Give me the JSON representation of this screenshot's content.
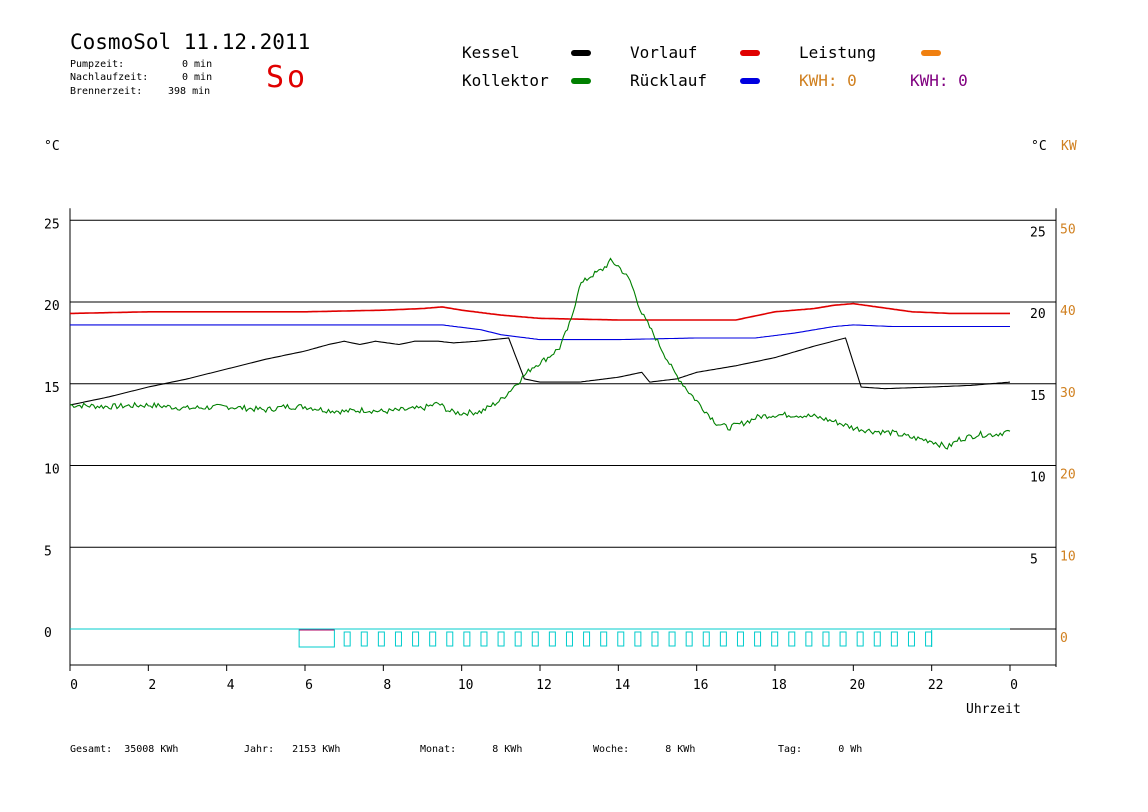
{
  "header": {
    "title": "CosmoSol 11.12.2011",
    "day": "So",
    "info": [
      {
        "label": "Pumpzeit:",
        "value": "0 min"
      },
      {
        "label": "Nachlaufzeit:",
        "value": "0 min"
      },
      {
        "label": "Brennerzeit:",
        "value": "398 min"
      }
    ]
  },
  "legend": {
    "kessel": {
      "label": "Kessel",
      "color": "#000000"
    },
    "kollektor": {
      "label": "Kollektor",
      "color": "#008000"
    },
    "vorlauf": {
      "label": "Vorlauf",
      "color": "#e00000"
    },
    "ruecklauf": {
      "label": "Rücklauf",
      "color": "#0000e0"
    },
    "leistung": {
      "label": "Leistung",
      "color": "#f08010"
    },
    "kwh1": "KWH: 0",
    "kwh2": "KWH: 0",
    "kwh1_color": "#d08020",
    "kwh2_color": "#800080"
  },
  "units": {
    "left": "°C",
    "right": "°C",
    "right2": "KW"
  },
  "footer": [
    {
      "label": "Gesamt:",
      "value": "35008 KWh"
    },
    {
      "label": "Jahr:",
      "value": "2153 KWh"
    },
    {
      "label": "Monat:",
      "value": "8 KWh"
    },
    {
      "label": "Woche:",
      "value": "8 KWh"
    },
    {
      "label": "Tag:",
      "value": "0 Wh"
    }
  ],
  "chart_data": {
    "type": "line",
    "xlabel": "Uhrzeit",
    "xlim": [
      0,
      24
    ],
    "x_ticks": [
      "0",
      "2",
      "4",
      "6",
      "8",
      "10",
      "12",
      "14",
      "16",
      "18",
      "20",
      "22",
      "0"
    ],
    "ylim": [
      0,
      25
    ],
    "y_ticks_left": [
      0,
      5,
      10,
      15,
      20,
      25
    ],
    "y_ticks_right_temp": [
      5,
      10,
      15,
      20,
      25
    ],
    "y_ticks_right_kw": [
      0,
      10,
      20,
      30,
      40,
      50
    ],
    "grid": true,
    "series": [
      {
        "name": "Kessel",
        "color": "#000000",
        "points": [
          [
            0,
            13.7
          ],
          [
            1,
            14.2
          ],
          [
            2,
            14.8
          ],
          [
            3,
            15.3
          ],
          [
            4,
            15.9
          ],
          [
            5,
            16.5
          ],
          [
            6,
            17
          ],
          [
            6.6,
            17.4
          ],
          [
            7,
            17.6
          ],
          [
            7.4,
            17.4
          ],
          [
            7.8,
            17.6
          ],
          [
            8.4,
            17.4
          ],
          [
            8.8,
            17.6
          ],
          [
            9.4,
            17.6
          ],
          [
            9.8,
            17.5
          ],
          [
            10.4,
            17.6
          ],
          [
            11.2,
            17.8
          ],
          [
            11.6,
            15.3
          ],
          [
            12,
            15.1
          ],
          [
            13,
            15.1
          ],
          [
            14,
            15.4
          ],
          [
            14.6,
            15.7
          ],
          [
            14.8,
            15.1
          ],
          [
            15.5,
            15.3
          ],
          [
            16,
            15.7
          ],
          [
            17,
            16.1
          ],
          [
            18,
            16.6
          ],
          [
            19,
            17.3
          ],
          [
            19.8,
            17.8
          ],
          [
            20.2,
            14.8
          ],
          [
            20.8,
            14.7
          ],
          [
            22,
            14.8
          ],
          [
            23,
            14.9
          ],
          [
            24,
            15.1
          ]
        ]
      },
      {
        "name": "Vorlauf",
        "color": "#e00000",
        "points": [
          [
            0,
            19.3
          ],
          [
            2,
            19.4
          ],
          [
            4,
            19.4
          ],
          [
            6,
            19.4
          ],
          [
            8,
            19.5
          ],
          [
            9,
            19.6
          ],
          [
            9.5,
            19.7
          ],
          [
            10,
            19.5
          ],
          [
            11,
            19.2
          ],
          [
            12,
            19.0
          ],
          [
            14,
            18.9
          ],
          [
            16,
            18.9
          ],
          [
            17,
            18.9
          ],
          [
            18,
            19.4
          ],
          [
            19,
            19.6
          ],
          [
            19.5,
            19.8
          ],
          [
            20,
            19.9
          ],
          [
            20.6,
            19.7
          ],
          [
            21.5,
            19.4
          ],
          [
            22.5,
            19.3
          ],
          [
            24,
            19.3
          ]
        ]
      },
      {
        "name": "Rücklauf",
        "color": "#0000e0",
        "points": [
          [
            0,
            18.6
          ],
          [
            4,
            18.6
          ],
          [
            6,
            18.6
          ],
          [
            8,
            18.6
          ],
          [
            9.5,
            18.6
          ],
          [
            10.5,
            18.3
          ],
          [
            11,
            18.0
          ],
          [
            12,
            17.7
          ],
          [
            14,
            17.7
          ],
          [
            16,
            17.8
          ],
          [
            17.5,
            17.8
          ],
          [
            18.5,
            18.1
          ],
          [
            19.5,
            18.5
          ],
          [
            20,
            18.6
          ],
          [
            21,
            18.5
          ],
          [
            24,
            18.5
          ]
        ]
      },
      {
        "name": "Kollektor",
        "color": "#008000",
        "points": [
          [
            0,
            13.7
          ],
          [
            1,
            13.6
          ],
          [
            2,
            13.7
          ],
          [
            3,
            13.5
          ],
          [
            4,
            13.6
          ],
          [
            5,
            13.4
          ],
          [
            5.5,
            13.6
          ],
          [
            6,
            13.6
          ],
          [
            6.5,
            13.4
          ],
          [
            7,
            13.3
          ],
          [
            7.5,
            13.4
          ],
          [
            8,
            13.3
          ],
          [
            8.5,
            13.4
          ],
          [
            9,
            13.5
          ],
          [
            9.4,
            13.8
          ],
          [
            9.7,
            13.3
          ],
          [
            10,
            13.2
          ],
          [
            10.5,
            13.3
          ],
          [
            11,
            14.0
          ],
          [
            11.4,
            15.0
          ],
          [
            11.8,
            16.0
          ],
          [
            12.2,
            16.6
          ],
          [
            12.5,
            17.2
          ],
          [
            12.8,
            18.9
          ],
          [
            13.0,
            21.0
          ],
          [
            13.3,
            21.6
          ],
          [
            13.6,
            22.0
          ],
          [
            13.8,
            22.5
          ],
          [
            14.0,
            22.2
          ],
          [
            14.3,
            21.3
          ],
          [
            14.6,
            19.3
          ],
          [
            15,
            17.6
          ],
          [
            15.4,
            15.8
          ],
          [
            15.8,
            14.5
          ],
          [
            16.2,
            13.4
          ],
          [
            16.5,
            12.6
          ],
          [
            16.8,
            12.3
          ],
          [
            17.2,
            12.6
          ],
          [
            17.6,
            13.0
          ],
          [
            18,
            13.1
          ],
          [
            18.5,
            13.1
          ],
          [
            19,
            13.0
          ],
          [
            19.5,
            12.7
          ],
          [
            20,
            12.3
          ],
          [
            20.5,
            12.1
          ],
          [
            21,
            12.0
          ],
          [
            21.5,
            11.7
          ],
          [
            22,
            11.5
          ],
          [
            22.4,
            11.1
          ],
          [
            22.7,
            11.6
          ],
          [
            23.2,
            11.9
          ],
          [
            23.6,
            11.9
          ],
          [
            24,
            12.1
          ]
        ]
      }
    ],
    "status_bar": {
      "color": "#00cccc",
      "start": 5.85,
      "end": 22.0
    }
  }
}
